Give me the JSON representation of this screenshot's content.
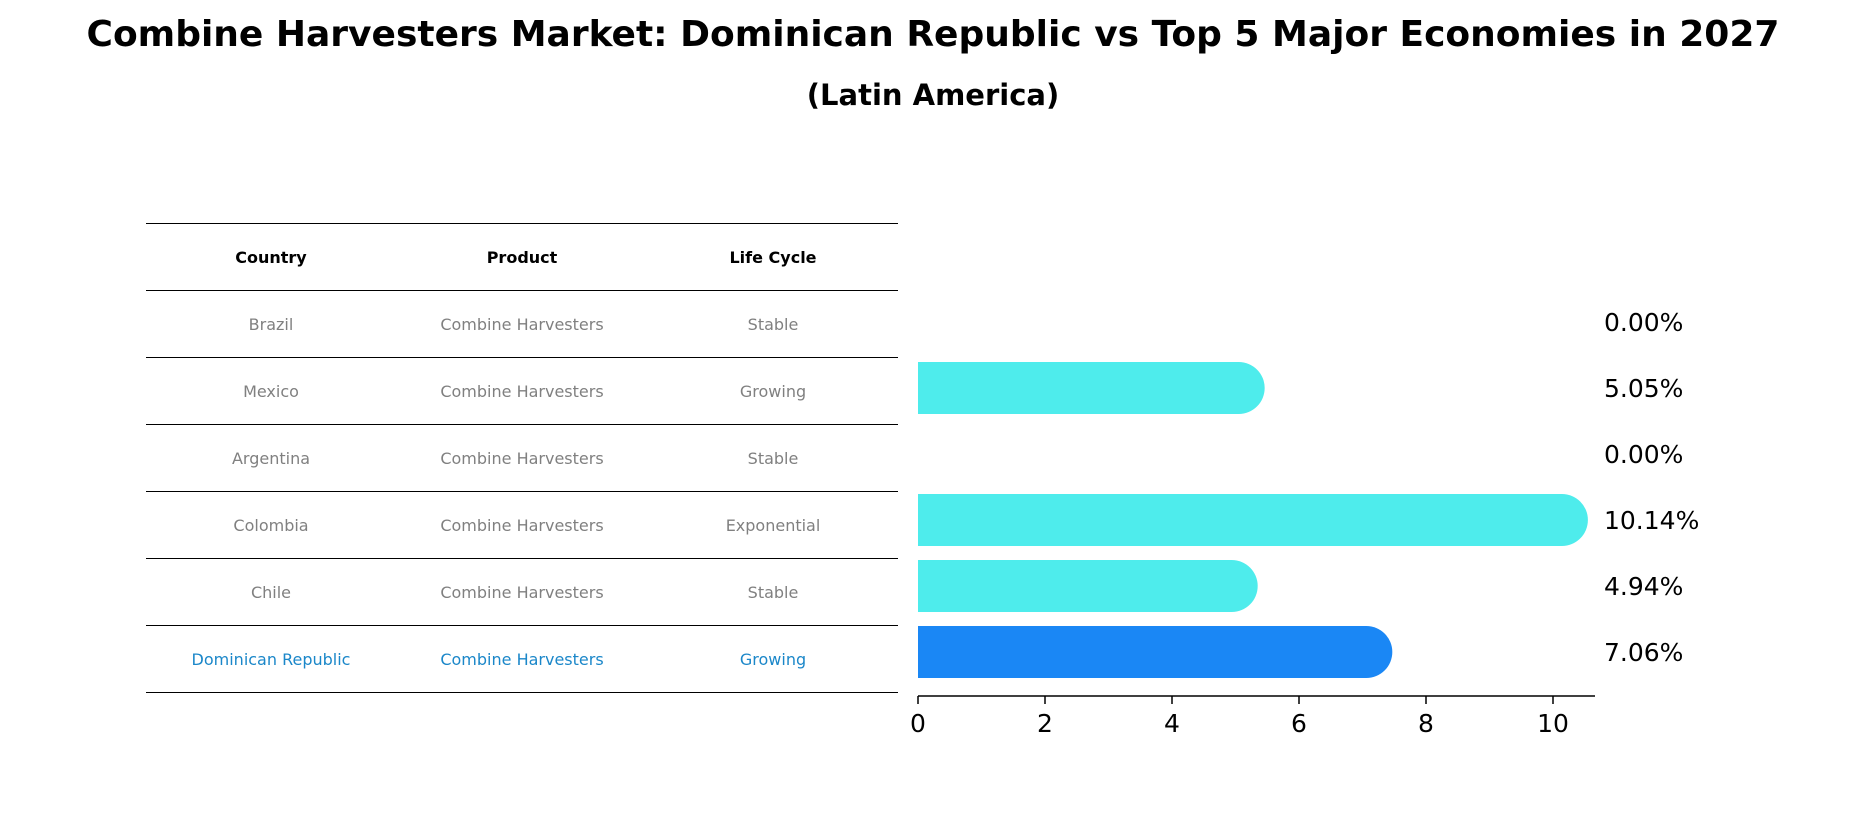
{
  "title": "Combine Harvesters Market: Dominican Republic vs Top 5 Major Economies in 2027",
  "subtitle": "(Latin America)",
  "table": {
    "headers": [
      "Country",
      "Product",
      "Life Cycle"
    ],
    "rows": [
      [
        "Brazil",
        "Combine Harvesters",
        "Stable"
      ],
      [
        "Mexico",
        "Combine Harvesters",
        "Growing"
      ],
      [
        "Argentina",
        "Combine Harvesters",
        "Stable"
      ],
      [
        "Colombia",
        "Combine Harvesters",
        "Exponential"
      ],
      [
        "Chile",
        "Combine Harvesters",
        "Stable"
      ],
      [
        "Dominican Republic",
        "Combine Harvesters",
        "Growing"
      ]
    ],
    "highlight_row": 5
  },
  "chart_data": {
    "type": "bar",
    "orientation": "horizontal",
    "categories": [
      "Brazil",
      "Mexico",
      "Argentina",
      "Colombia",
      "Chile",
      "Dominican Republic"
    ],
    "values": [
      0.0,
      5.05,
      0.0,
      10.14,
      4.94,
      7.06
    ],
    "value_labels": [
      "0.00%",
      "5.05%",
      "0.00%",
      "10.14%",
      "4.94%",
      "7.06%"
    ],
    "xlim": [
      0,
      10.6
    ],
    "xticks": [
      "0",
      "2",
      "4",
      "6",
      "8",
      "10"
    ],
    "grid": false,
    "colors": {
      "default": "#4eecec",
      "highlight": "#1a87f5"
    },
    "highlight_index": 5
  }
}
